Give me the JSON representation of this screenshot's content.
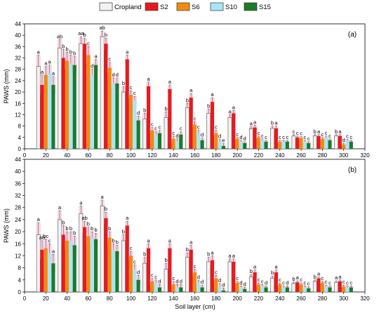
{
  "colors": {
    "Cropland": "#f2f2f2",
    "S2": "#e8191e",
    "S6": "#f08a10",
    "S10": "#a8e6f5",
    "S15": "#1c7a2a",
    "error_bar": "#f6b7d2"
  },
  "legend": {
    "placement": "top-center",
    "items": [
      "Cropland",
      "S2",
      "S6",
      "S10",
      "S15"
    ]
  },
  "x_axis_label": "Soil layer (cm)",
  "chart_data": [
    {
      "type": "bar",
      "panel_label": "(a)",
      "ylabel": "PAWS (mm)",
      "xlabel": "",
      "ylim": [
        0,
        44
      ],
      "xlim": [
        0,
        320
      ],
      "yticks": [
        0,
        4,
        8,
        12,
        16,
        20,
        24,
        28,
        32,
        36,
        40,
        44
      ],
      "xticks": [
        0,
        20,
        40,
        60,
        80,
        100,
        120,
        140,
        160,
        180,
        200,
        220,
        240,
        260,
        280,
        300,
        320
      ],
      "x": [
        20,
        40,
        60,
        80,
        100,
        120,
        140,
        160,
        180,
        200,
        220,
        240,
        260,
        280,
        300
      ],
      "series": [
        {
          "name": "Cropland",
          "values": [
            29,
            35.5,
            37,
            39.5,
            20,
            10.5,
            11,
            14.5,
            12.5,
            11,
            7,
            7.2,
            4.5,
            4.5,
            4.5
          ],
          "errors": [
            4,
            3,
            2.5,
            2,
            2,
            2,
            2,
            1.5,
            1.5,
            1,
            0.8,
            0.8,
            0.5,
            0.5,
            0.5
          ],
          "letters": [
            "a",
            "ab",
            "aa",
            "ab",
            "b",
            "b",
            "b",
            "b",
            "b",
            "a",
            "a",
            "b",
            "c",
            "b",
            "b"
          ]
        },
        {
          "name": "S2",
          "values": [
            22.5,
            32,
            37,
            37,
            31.5,
            22,
            21,
            18,
            16.5,
            12.5,
            7.5,
            7.2,
            4,
            4.5,
            4.5
          ],
          "errors": [
            3.5,
            3,
            2,
            2,
            1.5,
            1.5,
            1.5,
            1.5,
            1.5,
            1,
            0.8,
            0.8,
            0.5,
            0.5,
            0.5
          ],
          "letters": [
            "a",
            "b",
            "b",
            "b",
            "a",
            "a",
            "a",
            "a",
            "a",
            "a",
            "a",
            "a",
            "c",
            "a",
            "a"
          ]
        },
        {
          "name": "S6",
          "values": [
            26,
            31,
            33,
            28.5,
            19,
            6.5,
            3.5,
            8.5,
            5.5,
            3.5,
            4,
            2.5,
            3.8,
            3.5,
            1.5
          ],
          "errors": [
            3,
            3,
            3,
            2,
            1.5,
            1,
            1,
            1,
            1,
            0.5,
            0.5,
            0.5,
            0.5,
            0.5,
            0.5
          ],
          "letters": [
            "a",
            "b",
            "c",
            "c",
            "c",
            "c",
            "c",
            "c",
            "c",
            "c",
            "c",
            "c",
            "c",
            "c",
            "d"
          ]
        },
        {
          "name": "S10",
          "values": [
            26.5,
            30,
            26,
            23,
            17,
            5,
            2.5,
            5.5,
            2.5,
            2.5,
            3,
            2.5,
            2.5,
            4,
            2.8
          ],
          "errors": [
            3,
            3,
            2,
            2,
            1.5,
            1,
            1,
            1,
            0.8,
            0.5,
            0.5,
            0.5,
            0.5,
            0.5,
            0.5
          ],
          "letters": [
            "a",
            "b",
            "d",
            "d",
            "c",
            "c",
            "d",
            "c",
            "d",
            "d",
            "c",
            "c",
            "c",
            "c",
            "c"
          ]
        },
        {
          "name": "S15",
          "values": [
            22.5,
            29.5,
            29.5,
            23,
            10,
            5.5,
            5,
            3,
            1,
            2,
            2.5,
            2.5,
            2,
            3,
            2.5
          ],
          "errors": [
            3,
            3,
            2,
            2,
            1.5,
            1,
            1,
            0.8,
            0.8,
            0.5,
            0.5,
            0.5,
            0.5,
            0.5,
            0.5
          ],
          "letters": [
            "a",
            "b",
            "a",
            "d",
            "d",
            "c",
            "c",
            "d",
            "e",
            "d",
            "c",
            "c",
            "c",
            "c",
            "c"
          ]
        }
      ]
    },
    {
      "type": "bar",
      "panel_label": "(b)",
      "ylabel": "PAWS (mm)",
      "xlabel": "Soil layer (cm)",
      "ylim": [
        0,
        44
      ],
      "xlim": [
        0,
        320
      ],
      "yticks": [
        0,
        4,
        8,
        12,
        16,
        20,
        24,
        28,
        32,
        36,
        40,
        44
      ],
      "xticks": [
        0,
        20,
        40,
        60,
        80,
        100,
        120,
        140,
        160,
        180,
        200,
        220,
        240,
        260,
        280,
        300,
        320
      ],
      "x": [
        20,
        40,
        60,
        80,
        100,
        120,
        140,
        160,
        180,
        200,
        220,
        240,
        260,
        280,
        300
      ],
      "series": [
        {
          "name": "Cropland",
          "values": [
            19,
            24,
            26,
            28.5,
            17,
            9.5,
            7.5,
            11.5,
            10,
            10,
            5,
            4.5,
            2.8,
            3.5,
            3.2
          ],
          "errors": [
            4,
            3,
            2.5,
            2,
            2,
            2,
            2,
            1.5,
            1.5,
            1,
            0.8,
            0.8,
            0.5,
            0.5,
            0.5
          ],
          "letters": [
            "a",
            "a",
            "a",
            "a",
            "b",
            "b",
            "b",
            "b",
            "b",
            "a",
            "b",
            "b",
            "b",
            "b",
            "a"
          ]
        },
        {
          "name": "S2",
          "values": [
            14,
            19,
            21.5,
            24.5,
            22,
            14.5,
            14.5,
            14,
            10.5,
            10,
            6.5,
            6.5,
            3.2,
            4.5,
            3.5
          ],
          "errors": [
            3,
            3,
            2,
            2,
            1.5,
            1.5,
            1.5,
            1.5,
            1.5,
            1,
            0.8,
            0.8,
            0.5,
            0.5,
            0.5
          ],
          "letters": [
            "ab",
            "b",
            "ab",
            "b",
            "a",
            "a",
            "a",
            "a",
            "a",
            "a",
            "a",
            "a",
            "a",
            "a",
            "a"
          ]
        },
        {
          "name": "S6",
          "values": [
            14.5,
            17,
            18.5,
            18,
            12,
            3.5,
            2.5,
            6.5,
            4.5,
            3,
            2.5,
            2.5,
            2.5,
            3,
            1.8
          ],
          "errors": [
            3,
            3,
            3,
            2,
            1.5,
            1,
            1,
            1,
            1,
            0.5,
            0.5,
            0.5,
            0.5,
            0.5,
            0.5
          ],
          "letters": [
            "bc",
            "b",
            "b",
            "b",
            "c",
            "c",
            "c",
            "c",
            "c",
            "c",
            "c",
            "c",
            "c",
            "c",
            "c"
          ]
        },
        {
          "name": "S10",
          "values": [
            13,
            17,
            18,
            14,
            7.5,
            3,
            1.5,
            3,
            2,
            1.5,
            2,
            1.5,
            1.5,
            1.8,
            1.5
          ],
          "errors": [
            3,
            3,
            2,
            2,
            1.5,
            1,
            1,
            0.8,
            0.8,
            0.5,
            0.5,
            0.5,
            0.5,
            0.5,
            0.5
          ],
          "letters": [
            "c",
            "b",
            "b",
            "b",
            "c",
            "c",
            "d",
            "d",
            "d",
            "d",
            "c",
            "c",
            "c",
            "c",
            "c"
          ]
        },
        {
          "name": "S15",
          "values": [
            9.5,
            15.5,
            17.5,
            13.5,
            4,
            1.5,
            1.5,
            1.5,
            0.5,
            1,
            1.5,
            1.5,
            1.2,
            1.5,
            1.5
          ],
          "errors": [
            3,
            3,
            2,
            2,
            1.5,
            1,
            1,
            0.8,
            0.8,
            0.5,
            0.5,
            0.5,
            0.5,
            0.5,
            0.5
          ],
          "letters": [
            "a",
            "b",
            "b",
            "b",
            "d",
            "d",
            "d",
            "d",
            "d",
            "d",
            "d",
            "d",
            "c",
            "c",
            "c"
          ]
        }
      ]
    }
  ]
}
